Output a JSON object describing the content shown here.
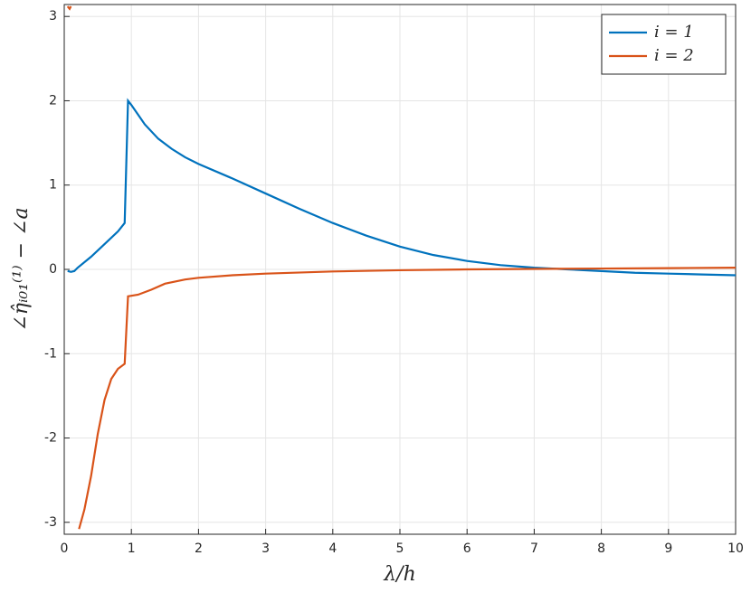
{
  "chart_data": {
    "type": "line",
    "xlabel": "λ/h",
    "ylabel": "∠η̂ᵢ₀₁⁽¹⁾ − ∠a",
    "xlim": [
      0,
      10
    ],
    "ylim": [
      -3.1416,
      3.1416
    ],
    "xticks": [
      0,
      1,
      2,
      3,
      4,
      5,
      6,
      7,
      8,
      9,
      10
    ],
    "yticks": [
      -3,
      -2,
      -1,
      0,
      1,
      2,
      3
    ],
    "grid": true,
    "legend": "upper right",
    "series": [
      {
        "name": "i = 1",
        "color": "#0072bd",
        "x": [
          0.05,
          0.1,
          0.15,
          0.2,
          0.4,
          0.6,
          0.8,
          0.9,
          0.95,
          1.0,
          1.2,
          1.4,
          1.6,
          1.8,
          2,
          2.5,
          3,
          3.5,
          4,
          4.5,
          5,
          5.5,
          6,
          6.5,
          7,
          7.5,
          8,
          8.5,
          9,
          9.5,
          10
        ],
        "values": [
          -0.02,
          -0.03,
          -0.02,
          0.02,
          0.15,
          0.3,
          0.45,
          0.55,
          2.0,
          1.95,
          1.72,
          1.55,
          1.43,
          1.33,
          1.25,
          1.08,
          0.9,
          0.72,
          0.55,
          0.4,
          0.27,
          0.17,
          0.1,
          0.05,
          0.02,
          0.0,
          -0.02,
          -0.04,
          -0.05,
          -0.06,
          -0.07
        ]
      },
      {
        "name": "i = 2",
        "color": "#d95319",
        "x": [
          0.05,
          0.08,
          0.1,
          0.16,
          0.22,
          0.3,
          0.4,
          0.5,
          0.6,
          0.7,
          0.8,
          0.9,
          0.95,
          1.1,
          1.3,
          1.5,
          1.8,
          2,
          2.5,
          3,
          4,
          5,
          6,
          7,
          8,
          9,
          10
        ],
        "values": [
          3.12,
          3.09,
          3.12,
          null,
          -3.08,
          -2.85,
          -2.45,
          -1.95,
          -1.55,
          -1.3,
          -1.18,
          -1.12,
          -0.32,
          -0.3,
          -0.24,
          -0.17,
          -0.12,
          -0.1,
          -0.07,
          -0.05,
          -0.025,
          -0.01,
          0.0,
          0.005,
          0.01,
          0.015,
          0.02
        ]
      }
    ]
  }
}
